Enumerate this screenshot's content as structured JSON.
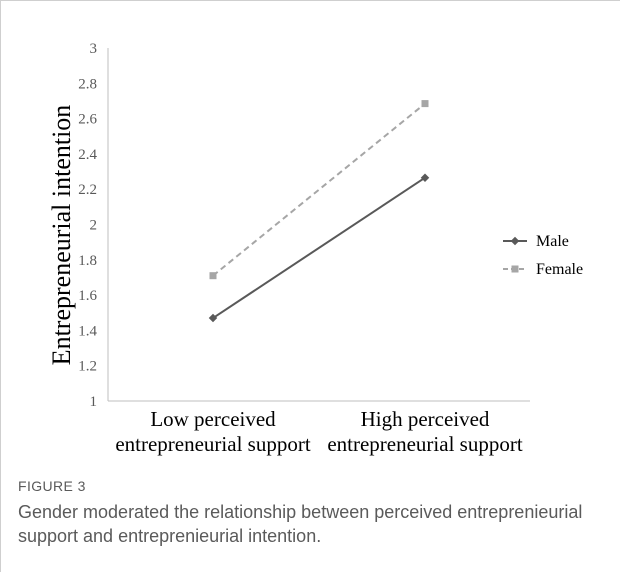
{
  "chart_data": {
    "type": "line",
    "categories": [
      "Low perceived\nentrepreneurial support",
      "High perceived\nentrepreneurial support"
    ],
    "ylabel": "Entrepreneurial intention",
    "xlabel": "",
    "ylim": [
      1,
      3
    ],
    "yticks": [
      "1",
      "1.2",
      "1.4",
      "1.6",
      "1.8",
      "2",
      "2.2",
      "2.4",
      "2.6",
      "2.8",
      "3"
    ],
    "legend_position": "right",
    "grid": false,
    "series": [
      {
        "name": "Male",
        "values": [
          1.47,
          2.265
        ],
        "color": "#595959",
        "style": "solid",
        "marker": "diamond"
      },
      {
        "name": "Female",
        "values": [
          1.71,
          2.685
        ],
        "color": "#a6a6a6",
        "style": "dashed",
        "marker": "square"
      }
    ]
  },
  "figure": {
    "label": "FIGURE 3",
    "caption": "Gender moderated the relationship between perceived entreprenieurial support and entreprenieurial intention."
  }
}
